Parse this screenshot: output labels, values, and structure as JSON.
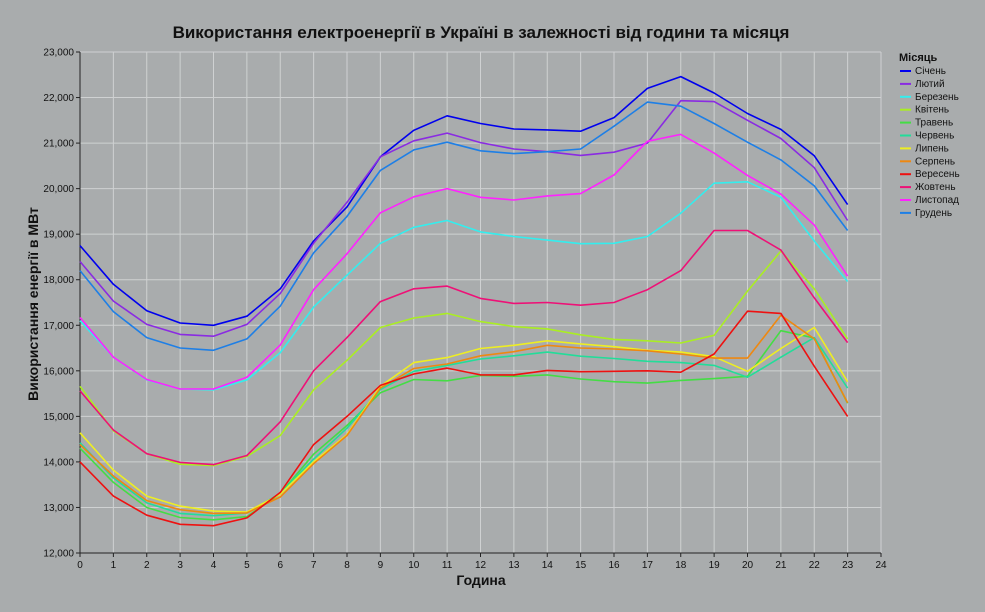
{
  "chart_data": {
    "type": "line",
    "title": "Використання електроенергії в Україні в залежності від години та місяця",
    "xlabel": "Година",
    "ylabel": "Використання енергії в МВт",
    "legend_title": "Місяць",
    "legend_position": "right",
    "grid": true,
    "xlim": [
      0,
      24
    ],
    "ylim": [
      12000,
      23000
    ],
    "x_ticks": [
      "0",
      "1",
      "2",
      "3",
      "4",
      "5",
      "6",
      "7",
      "8",
      "9",
      "10",
      "11",
      "12",
      "13",
      "14",
      "15",
      "16",
      "17",
      "18",
      "19",
      "20",
      "21",
      "22",
      "23",
      "24"
    ],
    "y_ticks": [
      "12,000",
      "13,000",
      "14,000",
      "15,000",
      "16,000",
      "17,000",
      "18,000",
      "19,000",
      "20,000",
      "21,000",
      "22,000",
      "23,000"
    ],
    "x": [
      0,
      1,
      2,
      3,
      4,
      5,
      6,
      7,
      8,
      9,
      10,
      11,
      12,
      13,
      14,
      15,
      16,
      17,
      18,
      19,
      20,
      21,
      22,
      23
    ],
    "series": [
      {
        "name": "Січень",
        "color": "#0000ee",
        "values": [
          18750,
          17900,
          17320,
          17050,
          17000,
          17200,
          17800,
          18850,
          19600,
          20700,
          21280,
          21600,
          21430,
          21310,
          21290,
          21260,
          21560,
          22200,
          22460,
          22100,
          21650,
          21300,
          20720,
          19650
        ]
      },
      {
        "name": "Лютий",
        "color": "#8a2be2",
        "values": [
          18400,
          17530,
          17020,
          16800,
          16760,
          17020,
          17700,
          18800,
          19700,
          20700,
          21050,
          21220,
          21010,
          20870,
          20810,
          20730,
          20800,
          21000,
          21930,
          21910,
          21500,
          21100,
          20460,
          19300
        ]
      },
      {
        "name": "Березень",
        "color": "#33eeee",
        "values": [
          17100,
          16300,
          15800,
          15600,
          15580,
          15800,
          16400,
          17400,
          18100,
          18800,
          19150,
          19300,
          19050,
          18950,
          18870,
          18790,
          18800,
          18950,
          19460,
          20120,
          20150,
          19810,
          18850,
          17960
        ]
      },
      {
        "name": "Квітень",
        "color": "#aaee22",
        "values": [
          15660,
          14680,
          14180,
          13950,
          13920,
          14120,
          14580,
          15580,
          16230,
          16950,
          17160,
          17260,
          17080,
          16970,
          16920,
          16790,
          16690,
          16660,
          16610,
          16780,
          17750,
          18630,
          17800,
          16700
        ]
      },
      {
        "name": "Травень",
        "color": "#44dd44",
        "values": [
          14300,
          13550,
          13000,
          12780,
          12730,
          12800,
          13300,
          14170,
          14800,
          15520,
          15810,
          15780,
          15900,
          15880,
          15910,
          15820,
          15760,
          15730,
          15790,
          15830,
          15880,
          16880,
          16720,
          15290
        ]
      },
      {
        "name": "Червень",
        "color": "#22dd99",
        "values": [
          14420,
          13650,
          13100,
          12870,
          12820,
          12880,
          13310,
          14060,
          14740,
          15590,
          15990,
          16120,
          16260,
          16330,
          16410,
          16320,
          16270,
          16210,
          16180,
          16120,
          15860,
          16300,
          16730,
          15620
        ]
      },
      {
        "name": "Липень",
        "color": "#eeee22",
        "values": [
          14640,
          13820,
          13250,
          13030,
          12920,
          12900,
          13290,
          14000,
          14600,
          15660,
          16180,
          16290,
          16490,
          16560,
          16660,
          16590,
          16530,
          16450,
          16410,
          16310,
          15990,
          16490,
          16950,
          15760
        ]
      },
      {
        "name": "Серпень",
        "color": "#ee8811",
        "values": [
          14380,
          13690,
          13150,
          12950,
          12870,
          12880,
          13230,
          13960,
          14580,
          15620,
          16050,
          16150,
          16330,
          16420,
          16560,
          16500,
          16480,
          16440,
          16370,
          16280,
          16280,
          17220,
          16700,
          15300
        ]
      },
      {
        "name": "Вересень",
        "color": "#ee1111",
        "values": [
          14000,
          13250,
          12830,
          12630,
          12600,
          12770,
          13330,
          14380,
          15000,
          15680,
          15930,
          16060,
          15910,
          15910,
          16010,
          15980,
          15990,
          16000,
          15970,
          16370,
          17310,
          17260,
          16100,
          15000
        ]
      },
      {
        "name": "Жовтень",
        "color": "#ee1177",
        "values": [
          15560,
          14700,
          14180,
          13990,
          13940,
          14140,
          14880,
          16000,
          16730,
          17520,
          17800,
          17860,
          17590,
          17480,
          17500,
          17440,
          17500,
          17780,
          18200,
          19080,
          19080,
          18650,
          17600,
          16620
        ]
      },
      {
        "name": "Листопад",
        "color": "#ff22ff",
        "values": [
          17170,
          16300,
          15810,
          15600,
          15600,
          15860,
          16570,
          17780,
          18570,
          19470,
          19820,
          20000,
          19810,
          19750,
          19840,
          19890,
          20300,
          21040,
          21190,
          20780,
          20290,
          19880,
          19200,
          18080
        ]
      },
      {
        "name": "Грудень",
        "color": "#1e7fe6",
        "values": [
          18200,
          17300,
          16730,
          16500,
          16450,
          16700,
          17420,
          18590,
          19390,
          20400,
          20850,
          21020,
          20830,
          20770,
          20810,
          20870,
          21370,
          21900,
          21810,
          21430,
          21020,
          20630,
          20060,
          19080
        ]
      }
    ]
  }
}
